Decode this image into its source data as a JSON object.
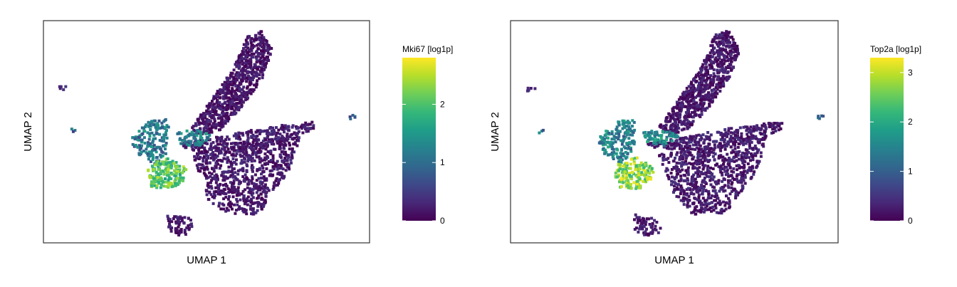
{
  "chart_data": [
    {
      "type": "scatter",
      "title": "",
      "xlabel": "UMAP 1",
      "ylabel": "UMAP 2",
      "grid": false,
      "axis_ticks_shown": false,
      "point_style": "hexbin",
      "legend": {
        "title": "Mki67 [log1p]",
        "placement": "right",
        "colormap": "viridis",
        "range": [
          0,
          2.8
        ],
        "ticks": [
          0,
          1,
          2
        ],
        "tick_labels": [
          "0",
          "1",
          "2"
        ]
      },
      "clusters": [
        {
          "region": "upper-right arm",
          "expression_level": "low"
        },
        {
          "region": "left cluster",
          "expression_level": "moderate"
        },
        {
          "region": "lower-left blob",
          "expression_level": "high"
        },
        {
          "region": "central small cluster",
          "expression_level": "moderate"
        },
        {
          "region": "right body",
          "expression_level": "low"
        },
        {
          "region": "bottom cluster",
          "expression_level": "low"
        }
      ]
    },
    {
      "type": "scatter",
      "title": "",
      "xlabel": "UMAP 1",
      "ylabel": "UMAP 2",
      "grid": false,
      "axis_ticks_shown": false,
      "point_style": "hexbin",
      "legend": {
        "title": "Top2a [log1p]",
        "placement": "right",
        "colormap": "viridis",
        "range": [
          0,
          3.3
        ],
        "ticks": [
          0,
          1,
          2,
          3
        ],
        "tick_labels": [
          "0",
          "1",
          "2",
          "3"
        ]
      },
      "clusters": [
        {
          "region": "upper-right arm",
          "expression_level": "low"
        },
        {
          "region": "left cluster",
          "expression_level": "moderate"
        },
        {
          "region": "lower-left blob",
          "expression_level": "high"
        },
        {
          "region": "central small cluster",
          "expression_level": "high"
        },
        {
          "region": "right body",
          "expression_level": "low"
        },
        {
          "region": "bottom cluster",
          "expression_level": "low"
        }
      ]
    }
  ],
  "colors": {
    "viridis_stops": [
      "#440154",
      "#482878",
      "#3e4989",
      "#31688e",
      "#26828e",
      "#1f9e89",
      "#35b779",
      "#6ece58",
      "#b5de2b",
      "#fde725"
    ],
    "frame": "#333333",
    "text": "#000000"
  }
}
